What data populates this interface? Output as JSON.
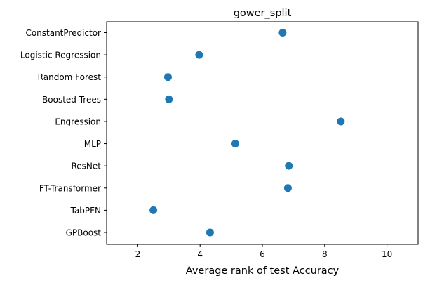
{
  "chart_data": {
    "type": "scatter",
    "title": "gower_split",
    "xlabel": "Average rank of test Accuracy",
    "ylabel": "",
    "xlim": [
      1,
      11
    ],
    "xticks": [
      2,
      4,
      6,
      8,
      10
    ],
    "grid": false,
    "legend": "none",
    "marker_color": "#1f77b4",
    "categories": [
      "ConstantPredictor",
      "Logistic Regression",
      "Random Forest",
      "Boosted Trees",
      "Engression",
      "MLP",
      "ResNet",
      "FT-Transformer",
      "TabPFN",
      "GPBoost"
    ],
    "values": [
      6.65,
      3.97,
      2.97,
      3.0,
      8.52,
      5.13,
      6.85,
      6.82,
      2.5,
      4.32
    ]
  }
}
